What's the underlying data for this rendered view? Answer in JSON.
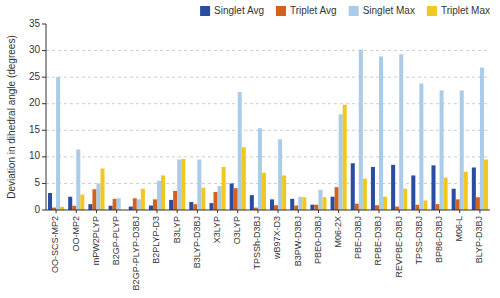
{
  "chart_data": {
    "type": "bar",
    "categories": [
      "OO-SCS-MP2",
      "OO-MP2",
      "mPW2PLYP",
      "B2GP-PLYP",
      "B2GP-PLYP-D3BJ",
      "B2PLYP-D3",
      "B3LYP",
      "B3LYP-D3BJ",
      "X3LYP",
      "O3LYP",
      "TPSSh-D3BJ",
      "wB97X-D3",
      "B3PW-D3BJ",
      "PBE0-D3BJ",
      "M06-2X",
      "PBE-D3BJ",
      "RPBE-D3BJ",
      "REVPBE-D3BJ",
      "TPSS-D3BJ",
      "BP86-D3BJ",
      "M06-L",
      "BLYP-D3BJ"
    ],
    "series": [
      {
        "name": "Singlet Avg",
        "color": "#2B4DA0",
        "values": [
          3.2,
          2.5,
          1.1,
          0.8,
          0.65,
          0.85,
          1.9,
          1.5,
          1.3,
          5.0,
          2.8,
          2.0,
          2.1,
          1.0,
          2.5,
          8.8,
          8.1,
          8.5,
          6.5,
          8.4,
          4.0,
          8.0
        ]
      },
      {
        "name": "Triplet Avg",
        "color": "#D4621A",
        "values": [
          0.45,
          0.8,
          3.9,
          2.1,
          2.2,
          2.0,
          3.6,
          1.1,
          3.4,
          4.1,
          0.45,
          0.9,
          0.85,
          1.0,
          4.3,
          1.2,
          0.9,
          0.65,
          1.0,
          1.1,
          2.0,
          2.4
        ]
      },
      {
        "name": "Singlet Max",
        "color": "#AACCE8",
        "values": [
          25.0,
          11.4,
          5.0,
          2.2,
          2.0,
          5.5,
          9.5,
          9.5,
          4.5,
          22.2,
          15.4,
          13.3,
          2.5,
          3.8,
          18.0,
          30.2,
          28.9,
          29.3,
          23.8,
          22.5,
          22.5,
          26.8
        ]
      },
      {
        "name": "Triplet Max",
        "color": "#F0C820",
        "values": [
          0.6,
          2.9,
          7.8,
          0.0,
          4.0,
          6.5,
          9.6,
          4.2,
          8.1,
          11.8,
          7.0,
          6.5,
          2.4,
          2.4,
          19.8,
          5.9,
          2.5,
          4.0,
          1.8,
          6.1,
          7.2,
          9.5
        ]
      }
    ],
    "ylabel": "Deviation in dihedral angle (degrees)",
    "ylim": [
      0,
      35
    ],
    "yticks": [
      0,
      5,
      10,
      15,
      20,
      25,
      30,
      35
    ],
    "grid": true,
    "legend": "upper right"
  }
}
